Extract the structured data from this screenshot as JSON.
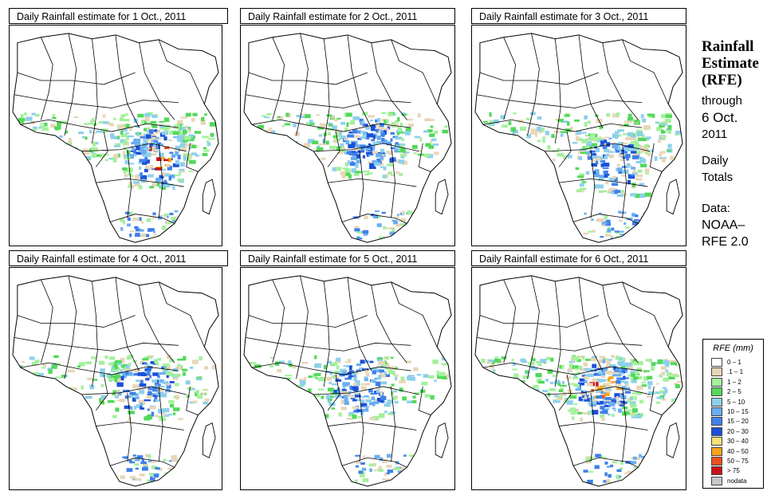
{
  "panels": [
    {
      "title": "Daily Rainfall estimate for  1 Oct., 2011"
    },
    {
      "title": "Daily Rainfall estimate for  2 Oct., 2011"
    },
    {
      "title": "Daily Rainfall estimate for  3 Oct., 2011"
    },
    {
      "title": "Daily Rainfall estimate for  4 Oct., 2011"
    },
    {
      "title": "Daily Rainfall estimate for  5 Oct., 2011"
    },
    {
      "title": "Daily Rainfall estimate for  6 Oct., 2011"
    }
  ],
  "side": {
    "title_lines": [
      "Rainfall",
      "Estimate",
      "(RFE)"
    ],
    "through_lines": [
      "through",
      "6 Oct.",
      "2011"
    ],
    "totals_lines": [
      "Daily",
      "Totals"
    ],
    "data_lines": [
      "Data:",
      "NOAA–",
      "RFE 2.0"
    ]
  },
  "legend": {
    "title": "RFE (mm)",
    "items": [
      {
        "label": "0 – 1",
        "color": "#ffffff"
      },
      {
        "label": ".1 – 1",
        "color": "#e8d6b8"
      },
      {
        "label": "1 – 2",
        "color": "#a4f09c"
      },
      {
        "label": "2 – 5",
        "color": "#52d85a"
      },
      {
        "label": "5 – 10",
        "color": "#8ed0ec"
      },
      {
        "label": "10 – 15",
        "color": "#6aaef0"
      },
      {
        "label": "15 – 20",
        "color": "#3f80ea"
      },
      {
        "label": "20 – 30",
        "color": "#1c50d8"
      },
      {
        "label": "30 – 40",
        "color": "#f8e07a"
      },
      {
        "label": "40 – 50",
        "color": "#f8a41c"
      },
      {
        "label": "50 – 75",
        "color": "#e8501c"
      },
      {
        "label": "> 75",
        "color": "#c81414"
      },
      {
        "label": "nodata",
        "color": "#c8c8c8"
      }
    ]
  }
}
